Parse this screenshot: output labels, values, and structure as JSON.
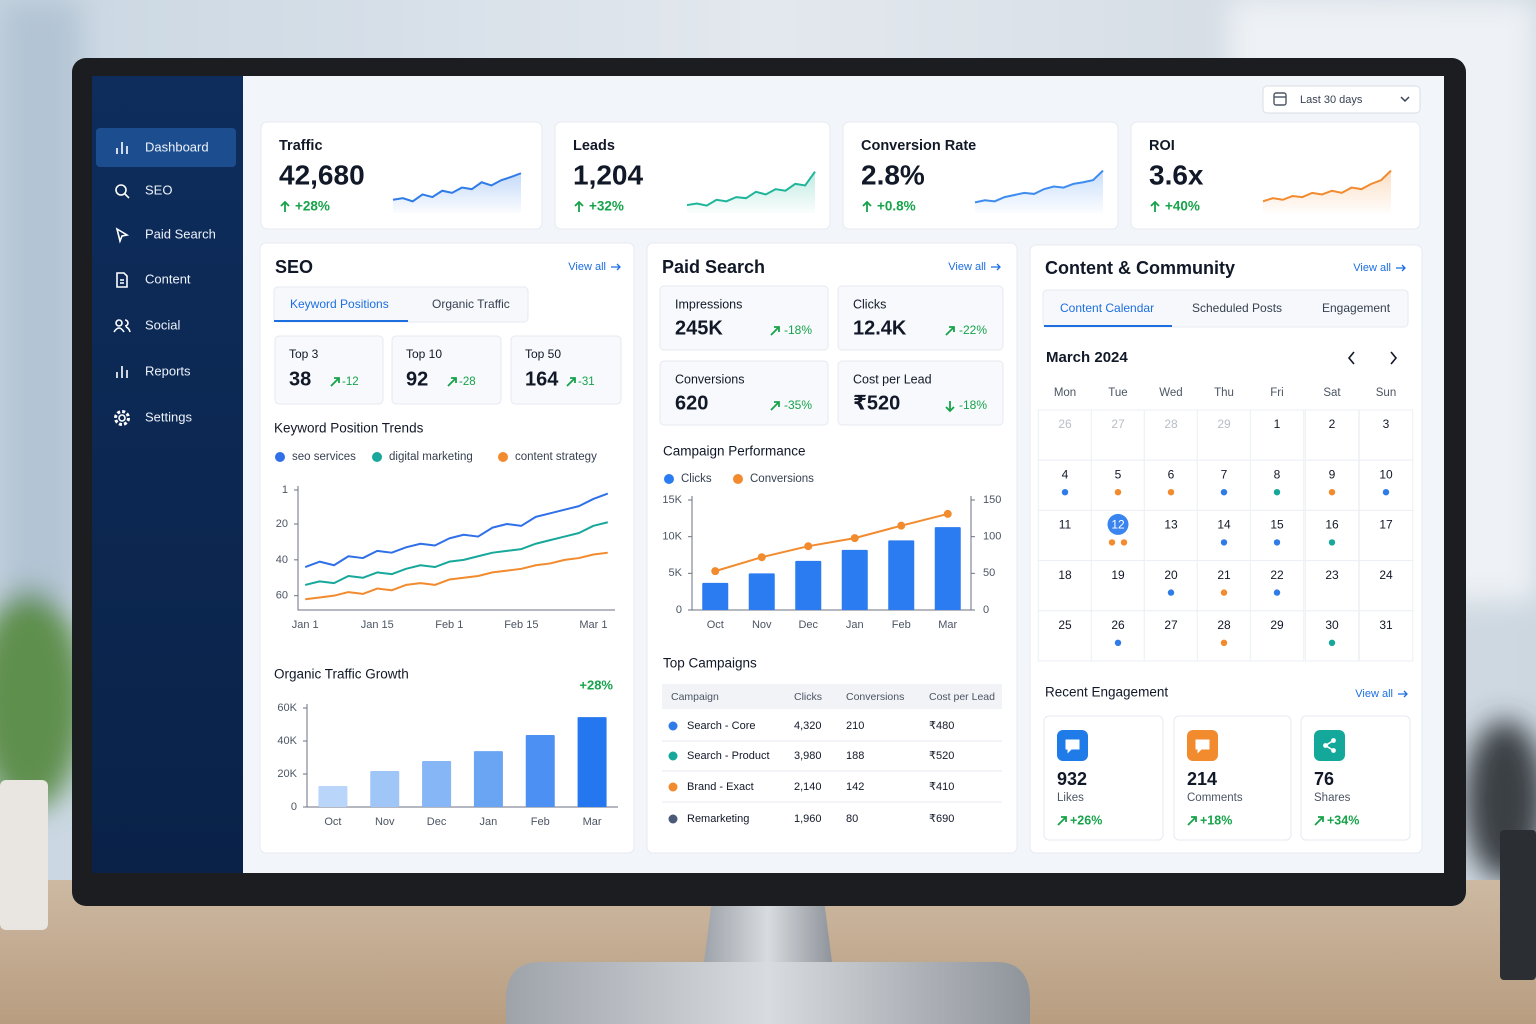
{
  "date_range": "Last 30 days",
  "sidebar": {
    "items": [
      "Dashboard",
      "SEO",
      "Paid Search",
      "Content",
      "Social",
      "Reports",
      "Settings"
    ],
    "active": 0
  },
  "spark_ylim": [
    0,
    100
  ],
  "kpis": [
    {
      "label": "Traffic",
      "value": "42,680",
      "change": "+28%",
      "color": "#2f7be8",
      "spark": [
        25,
        28,
        22,
        35,
        30,
        42,
        38,
        48,
        45,
        58,
        52,
        62,
        68,
        75
      ]
    },
    {
      "label": "Leads",
      "value": "1,204",
      "change": "+32%",
      "color": "#1fb59a",
      "spark": [
        15,
        18,
        14,
        25,
        22,
        30,
        28,
        40,
        35,
        45,
        42,
        55,
        52,
        78
      ]
    },
    {
      "label": "Conversion Rate",
      "value": "2.8%",
      "change": "+0.8%",
      "color": "#3f8cf0",
      "spark": [
        20,
        24,
        22,
        30,
        34,
        38,
        36,
        45,
        50,
        48,
        55,
        58,
        62,
        80
      ]
    },
    {
      "label": "ROI",
      "value": "3.6x",
      "change": "+40%",
      "color": "#f28a2e",
      "spark": [
        22,
        28,
        25,
        32,
        30,
        38,
        35,
        42,
        38,
        48,
        45,
        55,
        62,
        80
      ]
    }
  ],
  "seo": {
    "title": "SEO",
    "view_all": "View all",
    "tabs": [
      "Keyword Positions",
      "Organic Traffic"
    ],
    "active_tab": 0,
    "stats": [
      {
        "label": "Top 3",
        "value": "38",
        "change": "-12"
      },
      {
        "label": "Top 10",
        "value": "92",
        "change": "-28"
      },
      {
        "label": "Top 50",
        "value": "164",
        "change": "-31"
      }
    ],
    "trend": {
      "type": "line",
      "title": "Keyword Position Trends",
      "categories": [
        "Jan 1",
        null,
        null,
        null,
        null,
        "Jan 15",
        null,
        null,
        null,
        null,
        "Feb 1",
        null,
        null,
        null,
        null,
        "Feb 15",
        null,
        null,
        null,
        null,
        "Mar 1",
        null
      ],
      "series": [
        {
          "name": "seo services",
          "color": "#2f6fe8",
          "values": [
            44,
            41,
            43,
            38,
            39,
            35,
            36,
            33,
            31,
            32,
            28,
            26,
            27,
            22,
            20,
            21,
            16,
            14,
            12,
            10,
            6,
            3
          ]
        },
        {
          "name": "digital marketing",
          "color": "#17a89b",
          "values": [
            54,
            52,
            53,
            49,
            50,
            47,
            48,
            45,
            43,
            44,
            41,
            40,
            38,
            36,
            35,
            34,
            31,
            29,
            27,
            25,
            21,
            19
          ]
        },
        {
          "name": "content strategy",
          "color": "#f28a2e",
          "values": [
            62,
            61,
            60,
            58,
            59,
            56,
            57,
            54,
            53,
            54,
            51,
            50,
            49,
            47,
            46,
            45,
            43,
            42,
            40,
            39,
            37,
            36
          ]
        }
      ],
      "ylim": [
        68,
        1
      ],
      "yticks": [
        1,
        20,
        40,
        60
      ]
    },
    "growth": {
      "type": "bar",
      "title": "Organic Traffic Growth",
      "change": "+28%",
      "categories": [
        "Oct",
        "Nov",
        "Dec",
        "Jan",
        "Feb",
        "Mar"
      ],
      "values": [
        12700,
        21800,
        27900,
        33900,
        43600,
        54500
      ],
      "colors": [
        "#b9d5fa",
        "#a0c6f8",
        "#86b6f6",
        "#6aa5f4",
        "#4b90f2",
        "#2477ee"
      ],
      "ylim": [
        0,
        60000
      ],
      "yticks": [
        0,
        {
          "value": 20000,
          "label": "20K"
        },
        {
          "value": 40000,
          "label": "40K"
        },
        {
          "value": 60000,
          "label": "60K"
        }
      ]
    }
  },
  "paid": {
    "title": "Paid Search",
    "view_all": "View all",
    "stats": [
      {
        "label": "Impressions",
        "value": "245K",
        "change": "-18%",
        "arrow": "up-right"
      },
      {
        "label": "Clicks",
        "value": "12.4K",
        "change": "-22%",
        "arrow": "up-right"
      },
      {
        "label": "Conversions",
        "value": "620",
        "change": "-35%",
        "arrow": "up-right"
      },
      {
        "label": "Cost per Lead",
        "value": "₹520",
        "change": "-18%",
        "arrow": "down"
      }
    ],
    "performance": {
      "type": "bar",
      "title": "Campaign Performance",
      "categories": [
        "Oct",
        "Nov",
        "Dec",
        "Jan",
        "Feb",
        "Mar"
      ],
      "series": [
        {
          "name": "Clicks",
          "color": "#2a7cf0",
          "values": [
            3700,
            5000,
            6700,
            8200,
            9500,
            11300
          ]
        },
        {
          "name": "Conversions",
          "color": "#f28a2e",
          "type": "line",
          "markers": true,
          "axis": "y2",
          "values": [
            53,
            72,
            87,
            98,
            115,
            131
          ]
        }
      ],
      "ylim": [
        0,
        15000
      ],
      "yticks": [
        0,
        {
          "value": 5000,
          "label": "5K"
        },
        {
          "value": 10000,
          "label": "10K"
        },
        {
          "value": 15000,
          "label": "15K"
        }
      ],
      "y2lim": [
        0,
        150
      ],
      "y2ticks": [
        0,
        50,
        100,
        150
      ]
    },
    "campaigns": {
      "title": "Top Campaigns",
      "columns": [
        "Campaign",
        "Clicks",
        "Conversions",
        "Cost per Lead"
      ],
      "rows": [
        [
          "Search - Core",
          "4,320",
          "210",
          "₹480"
        ],
        [
          "Search - Product",
          "3,980",
          "188",
          "₹520"
        ],
        [
          "Brand - Exact",
          "2,140",
          "142",
          "₹410"
        ],
        [
          "Remarketing",
          "1,960",
          "80",
          "₹690"
        ]
      ],
      "colors": [
        "#2f7be8",
        "#17a89b",
        "#f28a2e",
        "#4a5a78"
      ]
    }
  },
  "content": {
    "title": "Content & Community",
    "view_all": "View all",
    "tabs": [
      "Content Calendar",
      "Scheduled Posts",
      "Engagement"
    ],
    "active_tab": 0,
    "calendar": {
      "month": "March 2024",
      "weekdays": [
        "Mon",
        "Tue",
        "Wed",
        "Thu",
        "Fri",
        "Sat",
        "Sun"
      ],
      "lead_days": [
        "26",
        "27",
        "28",
        "29"
      ],
      "days": [
        {
          "day": "1",
          "dots": []
        },
        {
          "day": "2",
          "dots": []
        },
        {
          "day": "3",
          "dots": []
        },
        {
          "day": "4",
          "dots": [
            "#2f7be8"
          ]
        },
        {
          "day": "5",
          "dots": [
            "#f28a2e"
          ]
        },
        {
          "day": "6",
          "dots": [
            "#f28a2e"
          ]
        },
        {
          "day": "7",
          "dots": [
            "#2f7be8"
          ]
        },
        {
          "day": "8",
          "dots": [
            "#17a89b"
          ]
        },
        {
          "day": "9",
          "dots": [
            "#f28a2e"
          ]
        },
        {
          "day": "10",
          "dots": [
            "#2f7be8"
          ]
        },
        {
          "day": "11",
          "dots": []
        },
        {
          "day": "12",
          "dots": [
            "#f28a2e",
            "#f28a2e"
          ],
          "selected": true
        },
        {
          "day": "13",
          "dots": []
        },
        {
          "day": "14",
          "dots": [
            "#2f7be8"
          ]
        },
        {
          "day": "15",
          "dots": [
            "#2f7be8"
          ]
        },
        {
          "day": "16",
          "dots": [
            "#17a89b"
          ]
        },
        {
          "day": "17",
          "dots": []
        },
        {
          "day": "18",
          "dots": []
        },
        {
          "day": "19",
          "dots": []
        },
        {
          "day": "20",
          "dots": [
            "#2f7be8"
          ]
        },
        {
          "day": "21",
          "dots": [
            "#f28a2e"
          ]
        },
        {
          "day": "22",
          "dots": [
            "#2f7be8"
          ]
        },
        {
          "day": "23",
          "dots": []
        },
        {
          "day": "24",
          "dots": []
        },
        {
          "day": "25",
          "dots": []
        },
        {
          "day": "26",
          "dots": [
            "#2f7be8"
          ]
        },
        {
          "day": "27",
          "dots": []
        },
        {
          "day": "28",
          "dots": [
            "#f28a2e"
          ]
        },
        {
          "day": "29",
          "dots": []
        },
        {
          "day": "30",
          "dots": [
            "#17a89b"
          ]
        },
        {
          "day": "31",
          "dots": []
        }
      ]
    },
    "engagement": {
      "title": "Recent Engagement",
      "view_all": "View all",
      "cards": [
        {
          "value": "932",
          "label": "Likes",
          "change": "+26%",
          "color": "#1e7be8"
        },
        {
          "value": "214",
          "label": "Comments",
          "change": "+18%",
          "color": "#f28a2e"
        },
        {
          "value": "76",
          "label": "Shares",
          "change": "+34%",
          "color": "#14a89a"
        }
      ]
    }
  }
}
